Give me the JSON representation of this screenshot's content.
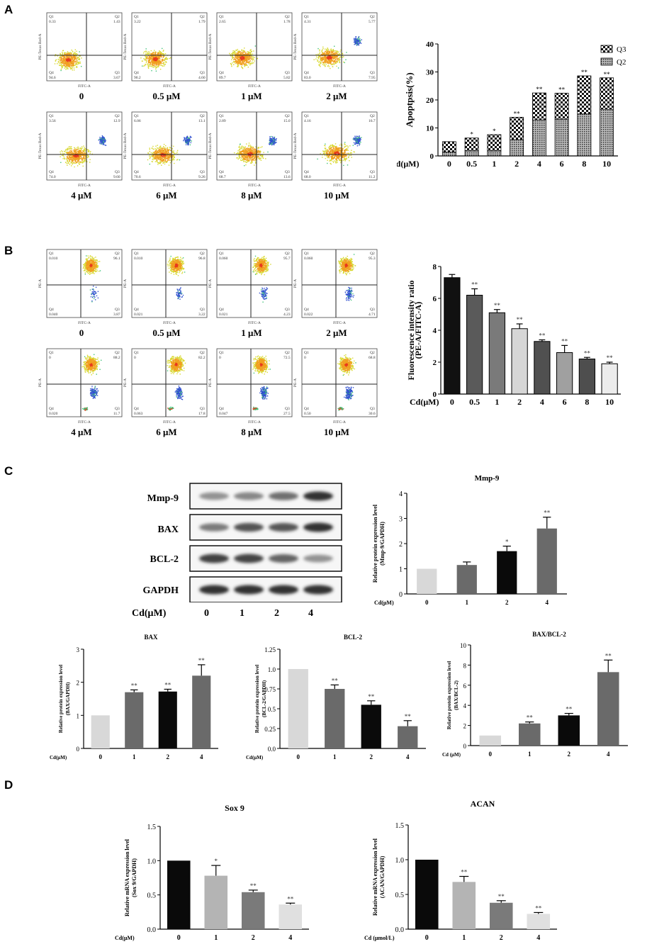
{
  "panels": {
    "A": "A",
    "B": "B",
    "C": "C",
    "D": "D"
  },
  "flow_A": {
    "xlabel": "FITC-A",
    "ylabel": "PE-Texas Red-A",
    "items": [
      {
        "label": "0",
        "q1": "0.33",
        "q2": "1.43",
        "q3": "3.67",
        "q4": "94.6"
      },
      {
        "label": "0.5 μM",
        "q1": "3.22",
        "q2": "1.79",
        "q3": "4.60",
        "q4": "90.2"
      },
      {
        "label": "1 μM",
        "q1": "2.65",
        "q2": "1.78",
        "q3": "5.82",
        "q4": "89.7"
      },
      {
        "label": "2 μM",
        "q1": "4.31",
        "q2": "5.77",
        "q3": "7.95",
        "q4": "83.0"
      },
      {
        "label": "4 μM",
        "q1": "3.56",
        "q2": "12.9",
        "q3": "9.60",
        "q4": "74.0"
      },
      {
        "label": "6 μM",
        "q1": "6.06",
        "q2": "13.1",
        "q3": "9.26",
        "q4": "70.6"
      },
      {
        "label": "8 μM",
        "q1": "2.89",
        "q2": "15.0",
        "q3": "13.6",
        "q4": "68.7"
      },
      {
        "label": "10 μM",
        "q1": "4.16",
        "q2": "16.7",
        "q3": "11.2",
        "q4": "68.0"
      }
    ]
  },
  "flow_B": {
    "xlabel": "FITC-A",
    "ylabel": "PE-A",
    "items": [
      {
        "label": "0",
        "q1": "0.010",
        "q2": "96.1",
        "q3": "3.87",
        "q4": "0.040"
      },
      {
        "label": "0.5 μM",
        "q1": "0.010",
        "q2": "96.8",
        "q3": "3.22",
        "q4": "0.021"
      },
      {
        "label": "1 μM",
        "q1": "0.060",
        "q2": "95.7",
        "q3": "4.23",
        "q4": "0.021"
      },
      {
        "label": "2 μM",
        "q1": "0.060",
        "q2": "95.3",
        "q3": "4.71",
        "q4": "0.022"
      },
      {
        "label": "4 μM",
        "q1": "0",
        "q2": "88.2",
        "q3": "11.7",
        "q4": "0.020"
      },
      {
        "label": "6 μM",
        "q1": "0",
        "q2": "82.2",
        "q3": "17.8",
        "q4": "0.063"
      },
      {
        "label": "8 μM",
        "q1": "0",
        "q2": "72.5",
        "q3": "27.5",
        "q4": "0.047"
      },
      {
        "label": "10 μM",
        "q1": "0",
        "q2": "68.8",
        "q3": "30.6",
        "q4": "0.50"
      }
    ]
  },
  "blot": {
    "rows": [
      "Mmp-9",
      "BAX",
      "BCL-2",
      "GAPDH"
    ],
    "cd_label": "Cd(μM)",
    "lanes": [
      "0",
      "1",
      "2",
      "4"
    ],
    "intensities": [
      [
        0.45,
        0.5,
        0.6,
        0.85
      ],
      [
        0.55,
        0.72,
        0.7,
        0.85
      ],
      [
        0.8,
        0.78,
        0.65,
        0.45
      ],
      [
        0.85,
        0.85,
        0.85,
        0.85
      ]
    ]
  },
  "chart_data": [
    {
      "id": "apoptosis",
      "type": "bar",
      "stacked": true,
      "categories": [
        "0",
        "0.5",
        "1",
        "2",
        "4",
        "6",
        "8",
        "10"
      ],
      "series": [
        {
          "name": "Q2",
          "values": [
            1.4,
            1.8,
            1.8,
            5.8,
            12.9,
            13.1,
            15.0,
            16.7
          ]
        },
        {
          "name": "Q3",
          "values": [
            3.7,
            4.6,
            5.8,
            8.0,
            9.6,
            9.3,
            13.6,
            11.2
          ]
        }
      ],
      "legend": [
        "Q3",
        "Q2"
      ],
      "significance": [
        "",
        "*",
        "*",
        "**",
        "**",
        "**",
        "**",
        "**"
      ],
      "title": "",
      "xlabel": "Cd(μM)",
      "ylabel": "Apoptpsis(%)",
      "ylim": [
        0,
        40
      ],
      "yticks": [
        "0",
        "10",
        "20",
        "30",
        "40"
      ]
    },
    {
      "id": "fluorescence",
      "type": "bar",
      "categories": [
        "0",
        "0.5",
        "1",
        "2",
        "4",
        "6",
        "8",
        "10"
      ],
      "values": [
        7.3,
        6.2,
        5.1,
        4.1,
        3.3,
        2.6,
        2.2,
        1.9
      ],
      "errors": [
        0.2,
        0.4,
        0.2,
        0.3,
        0.1,
        0.45,
        0.1,
        0.1
      ],
      "significance": [
        "",
        "**",
        "**",
        "**",
        "**",
        "**",
        "**",
        "**"
      ],
      "colors": [
        "#111111",
        "#5a5a5a",
        "#7a7a7a",
        "#d6d6d6",
        "#505050",
        "#a0a0a0",
        "#4e4e4e",
        "#ececec"
      ],
      "title": "",
      "xlabel": "Cd(μM)",
      "ylabel": "Fluorescence intensity ratio (PE-A/FITC-A)",
      "ylim": [
        0,
        8
      ],
      "yticks": [
        "0",
        "2",
        "4",
        "6",
        "8"
      ]
    },
    {
      "id": "mmp9",
      "type": "bar",
      "categories": [
        "0",
        "1",
        "2",
        "4"
      ],
      "values": [
        1.0,
        1.15,
        1.7,
        2.6
      ],
      "errors": [
        0,
        0.12,
        0.2,
        0.45
      ],
      "significance": [
        "",
        "",
        "*",
        "**"
      ],
      "colors": [
        "#d8d8d8",
        "#6a6a6a",
        "#0a0a0a",
        "#6a6a6a"
      ],
      "title": "Mmp-9",
      "xlabel": "Cd(μM)",
      "ylabel": "Relative protein expression level (Mmp-9/GAPDH)",
      "ylim": [
        0,
        4
      ],
      "yticks": [
        "0",
        "1",
        "2",
        "3",
        "4"
      ]
    },
    {
      "id": "bax",
      "type": "bar",
      "categories": [
        "0",
        "1",
        "2",
        "4"
      ],
      "values": [
        1.0,
        1.7,
        1.72,
        2.2
      ],
      "errors": [
        0,
        0.07,
        0.07,
        0.33
      ],
      "significance": [
        "",
        "**",
        "**",
        "**"
      ],
      "colors": [
        "#d8d8d8",
        "#6a6a6a",
        "#0a0a0a",
        "#6a6a6a"
      ],
      "title": "BAX",
      "xlabel": "Cd(μM)",
      "ylabel": "Relative protein expression level (BAX/GAPDH)",
      "ylim": [
        0,
        3
      ],
      "yticks": [
        "0",
        "1",
        "2",
        "3"
      ]
    },
    {
      "id": "bcl2",
      "type": "bar",
      "categories": [
        "0",
        "1",
        "2",
        "4"
      ],
      "values": [
        1.0,
        0.75,
        0.55,
        0.28
      ],
      "errors": [
        0,
        0.05,
        0.05,
        0.07
      ],
      "significance": [
        "",
        "**",
        "**",
        "**"
      ],
      "colors": [
        "#d8d8d8",
        "#6a6a6a",
        "#0a0a0a",
        "#6a6a6a"
      ],
      "title": "BCL-2",
      "xlabel": "Cd(μM)",
      "ylabel": "Relative protein expression level (BCL-2/GAPDH)",
      "ylim": [
        0,
        1.25
      ],
      "yticks": [
        "0.0",
        "0.25",
        "0.5",
        "0.75",
        "1.0",
        "1.25"
      ],
      "ytick_values": [
        0,
        0.25,
        0.5,
        0.75,
        1.0,
        1.25
      ]
    },
    {
      "id": "baxbcl2",
      "type": "bar",
      "categories": [
        "0",
        "1",
        "2",
        "4"
      ],
      "values": [
        1.0,
        2.2,
        3.0,
        7.3
      ],
      "errors": [
        0,
        0.15,
        0.2,
        1.2
      ],
      "significance": [
        "",
        "**",
        "**",
        "**"
      ],
      "colors": [
        "#d8d8d8",
        "#6a6a6a",
        "#0a0a0a",
        "#6a6a6a"
      ],
      "title": "BAX/BCL-2",
      "xlabel": "Cd (μM)",
      "ylabel": "Relative protein expression level (BAX/BCL-2)",
      "ylim": [
        0,
        10
      ],
      "yticks": [
        "0",
        "2",
        "4",
        "6",
        "8",
        "10"
      ]
    },
    {
      "id": "sox9",
      "type": "bar",
      "categories": [
        "0",
        "1",
        "2",
        "4"
      ],
      "values": [
        1.0,
        0.78,
        0.54,
        0.36
      ],
      "errors": [
        0,
        0.15,
        0.03,
        0.02
      ],
      "significance": [
        "",
        "*",
        "**",
        "**"
      ],
      "colors": [
        "#0a0a0a",
        "#b4b4b4",
        "#7a7a7a",
        "#e0e0e0"
      ],
      "title": "Sox 9",
      "xlabel": "Cd(μM)",
      "ylabel": "Relative mRNA expression level (Sox 9/GAPDH)",
      "ylim": [
        0,
        1.5
      ],
      "yticks": [
        "0.0",
        "0.5",
        "1.0",
        "1.5"
      ]
    },
    {
      "id": "acan",
      "type": "bar",
      "categories": [
        "0",
        "1",
        "2",
        "4"
      ],
      "values": [
        1.0,
        0.68,
        0.38,
        0.22
      ],
      "errors": [
        0,
        0.08,
        0.03,
        0.02
      ],
      "significance": [
        "",
        "**",
        "**",
        "**"
      ],
      "colors": [
        "#0a0a0a",
        "#b4b4b4",
        "#7a7a7a",
        "#e0e0e0"
      ],
      "title": "ACAN",
      "xlabel": "Cd (μmol/L)",
      "ylabel": "Relative mRNA expression level (ACAN/GAPDH)",
      "ylim": [
        0,
        1.5
      ],
      "yticks": [
        "0.0",
        "0.5",
        "1.0",
        "1.5"
      ]
    }
  ]
}
